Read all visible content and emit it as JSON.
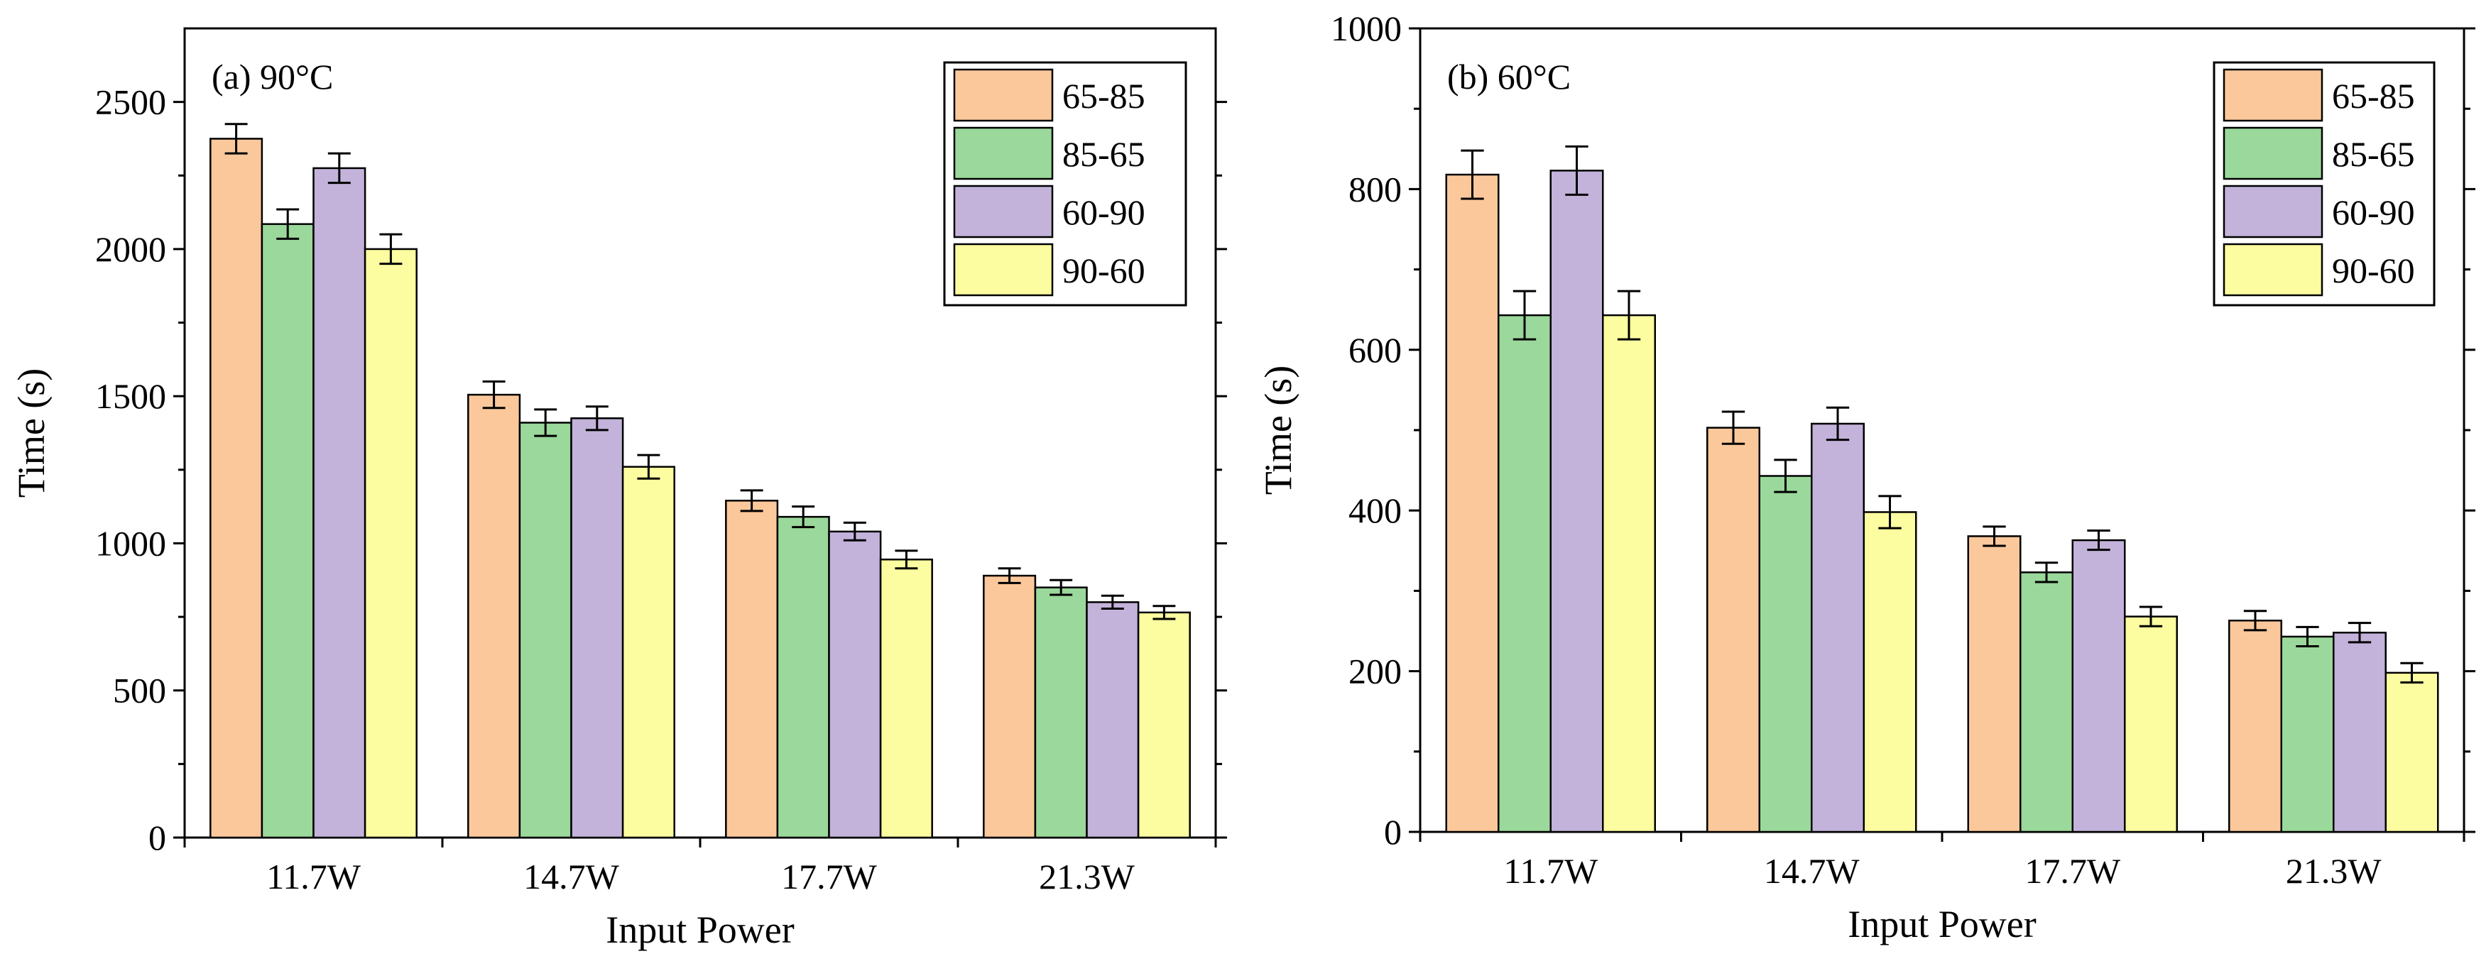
{
  "colors": {
    "series": [
      "#FBC89B",
      "#9BD89B",
      "#C3B3DA",
      "#FCFCA0"
    ],
    "axis": "#000000",
    "background": "#FFFFFF"
  },
  "chart_data": [
    {
      "type": "bar",
      "panel_label": "(a) 90°C",
      "xlabel": "Input Power",
      "ylabel": "Time (s)",
      "categories": [
        "11.7W",
        "14.7W",
        "17.7W",
        "21.3W"
      ],
      "ylim": [
        0,
        2750
      ],
      "yticks": [
        0,
        500,
        1000,
        1500,
        2000,
        2500
      ],
      "legend_position": "top-right",
      "series": [
        {
          "name": "65-85",
          "values": [
            2375,
            1505,
            1145,
            890
          ],
          "errors": [
            50,
            45,
            35,
            25
          ]
        },
        {
          "name": "85-65",
          "values": [
            2085,
            1410,
            1090,
            850
          ],
          "errors": [
            50,
            45,
            35,
            25
          ]
        },
        {
          "name": "60-90",
          "values": [
            2275,
            1425,
            1040,
            800
          ],
          "errors": [
            50,
            40,
            30,
            22
          ]
        },
        {
          "name": "90-60",
          "values": [
            2000,
            1260,
            945,
            765
          ],
          "errors": [
            50,
            40,
            30,
            22
          ]
        }
      ]
    },
    {
      "type": "bar",
      "panel_label": "(b) 60°C",
      "xlabel": "Input Power",
      "ylabel": "Time (s)",
      "categories": [
        "11.7W",
        "14.7W",
        "17.7W",
        "21.3W"
      ],
      "ylim": [
        0,
        1000
      ],
      "yticks": [
        0,
        200,
        400,
        600,
        800,
        1000
      ],
      "legend_position": "top-right",
      "series": [
        {
          "name": "65-85",
          "values": [
            818,
            503,
            368,
            263
          ],
          "errors": [
            30,
            20,
            12,
            12
          ]
        },
        {
          "name": "85-65",
          "values": [
            643,
            443,
            323,
            243
          ],
          "errors": [
            30,
            20,
            12,
            12
          ]
        },
        {
          "name": "60-90",
          "values": [
            823,
            508,
            363,
            248
          ],
          "errors": [
            30,
            20,
            12,
            12
          ]
        },
        {
          "name": "90-60",
          "values": [
            643,
            398,
            268,
            198
          ],
          "errors": [
            30,
            20,
            12,
            12
          ]
        }
      ]
    }
  ]
}
